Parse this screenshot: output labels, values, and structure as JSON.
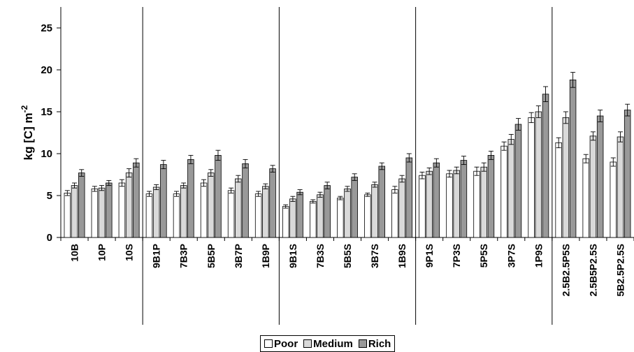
{
  "chart_data": {
    "type": "bar",
    "title": "",
    "xlabel": "",
    "ylabel": "kg [C] m",
    "ylabel_superscript": "-2",
    "ylim": [
      0,
      25
    ],
    "yticks": [
      "0",
      "5",
      "10",
      "15",
      "20",
      "25"
    ],
    "grid": false,
    "legend_position": "bottom-center",
    "categories": [
      "10B",
      "10P",
      "10S",
      "9B1P",
      "7B3P",
      "5B5P",
      "3B7P",
      "1B9P",
      "9B1S",
      "7B3S",
      "5B5S",
      "3B7S",
      "1B9S",
      "9P1S",
      "7P3S",
      "5P5S",
      "3P7S",
      "1P9S",
      "2.5B2.5P5S",
      "2.5B5P2.5S",
      "5B2.5P2.5S"
    ],
    "group_separators_after": [
      "10S",
      "1B9P",
      "1B9S",
      "1P9S"
    ],
    "series": [
      {
        "name": "Poor",
        "color": "#ffffff",
        "values": [
          5.3,
          5.8,
          6.5,
          5.2,
          5.2,
          6.5,
          5.6,
          5.2,
          3.7,
          4.3,
          4.7,
          5.1,
          5.7,
          7.4,
          7.6,
          7.9,
          10.9,
          14.3,
          11.3,
          9.4,
          9.0
        ],
        "errors": [
          0.3,
          0.3,
          0.4,
          0.3,
          0.3,
          0.4,
          0.3,
          0.3,
          0.2,
          0.2,
          0.2,
          0.2,
          0.4,
          0.4,
          0.4,
          0.5,
          0.5,
          0.6,
          0.6,
          0.5,
          0.5
        ]
      },
      {
        "name": "Medium",
        "color": "#d9d9d9",
        "values": [
          6.2,
          5.9,
          7.7,
          6.0,
          6.2,
          7.7,
          7.0,
          6.1,
          4.6,
          5.1,
          5.8,
          6.3,
          7.0,
          7.9,
          8.0,
          8.4,
          11.7,
          15.0,
          14.3,
          12.1,
          12.0
        ],
        "errors": [
          0.3,
          0.3,
          0.5,
          0.3,
          0.3,
          0.4,
          0.4,
          0.3,
          0.3,
          0.3,
          0.3,
          0.3,
          0.4,
          0.4,
          0.4,
          0.5,
          0.6,
          0.7,
          0.7,
          0.5,
          0.6
        ]
      },
      {
        "name": "Rich",
        "color": "#999999",
        "values": [
          7.7,
          6.5,
          8.9,
          8.7,
          9.3,
          9.8,
          8.8,
          8.2,
          5.4,
          6.2,
          7.2,
          8.5,
          9.5,
          8.9,
          9.2,
          9.8,
          13.5,
          17.1,
          18.8,
          14.5,
          15.2
        ],
        "errors": [
          0.4,
          0.3,
          0.5,
          0.5,
          0.5,
          0.6,
          0.5,
          0.4,
          0.3,
          0.4,
          0.4,
          0.4,
          0.5,
          0.5,
          0.5,
          0.5,
          0.7,
          0.9,
          0.9,
          0.7,
          0.7
        ]
      }
    ]
  }
}
